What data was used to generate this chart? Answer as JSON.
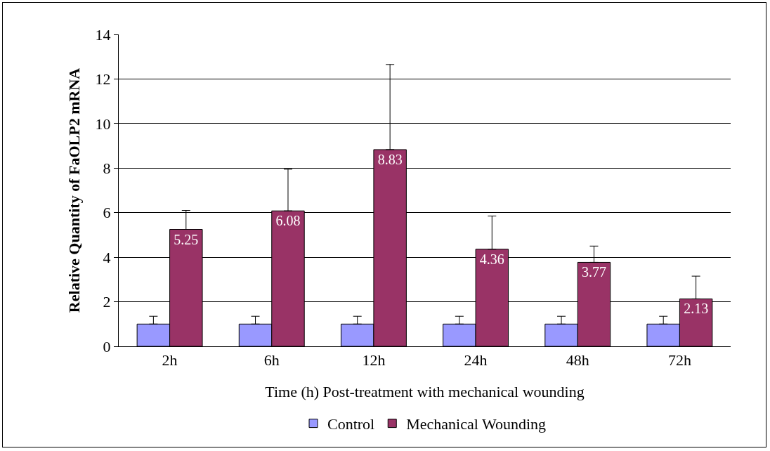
{
  "chart_data": {
    "type": "bar",
    "xlabel": "Time (h) Post-treatment with mechanical wounding",
    "ylabel": "Relative Quantity of FaOLP2 mRNA",
    "categories": [
      "2h",
      "6h",
      "12h",
      "24h",
      "48h",
      "72h"
    ],
    "series": [
      {
        "name": "Control",
        "color": "#9999ff",
        "values": [
          1,
          1,
          1,
          1,
          1,
          1
        ],
        "errors": [
          [
            1,
            1.35
          ],
          [
            1,
            1.35
          ],
          [
            1,
            1.35
          ],
          [
            1,
            1.35
          ],
          [
            1,
            1.35
          ],
          [
            1,
            1.35
          ]
        ]
      },
      {
        "name": "Mechanical Wounding",
        "color": "#993366",
        "values": [
          5.25,
          6.08,
          8.83,
          4.36,
          3.77,
          2.13
        ],
        "errors": [
          [
            5.25,
            6.1
          ],
          [
            6.08,
            7.95
          ],
          [
            8.83,
            12.65
          ],
          [
            4.36,
            5.85
          ],
          [
            3.77,
            4.5
          ],
          [
            2.13,
            3.15
          ]
        ],
        "value_labels": [
          "5.25",
          "6.08",
          "8.83",
          "4.36",
          "3.77",
          "2.13"
        ]
      }
    ],
    "ylim": [
      0,
      14
    ],
    "yticks": [
      0,
      2,
      4,
      6,
      8,
      10,
      12,
      14
    ],
    "grid": "y",
    "legend": "bottom"
  }
}
